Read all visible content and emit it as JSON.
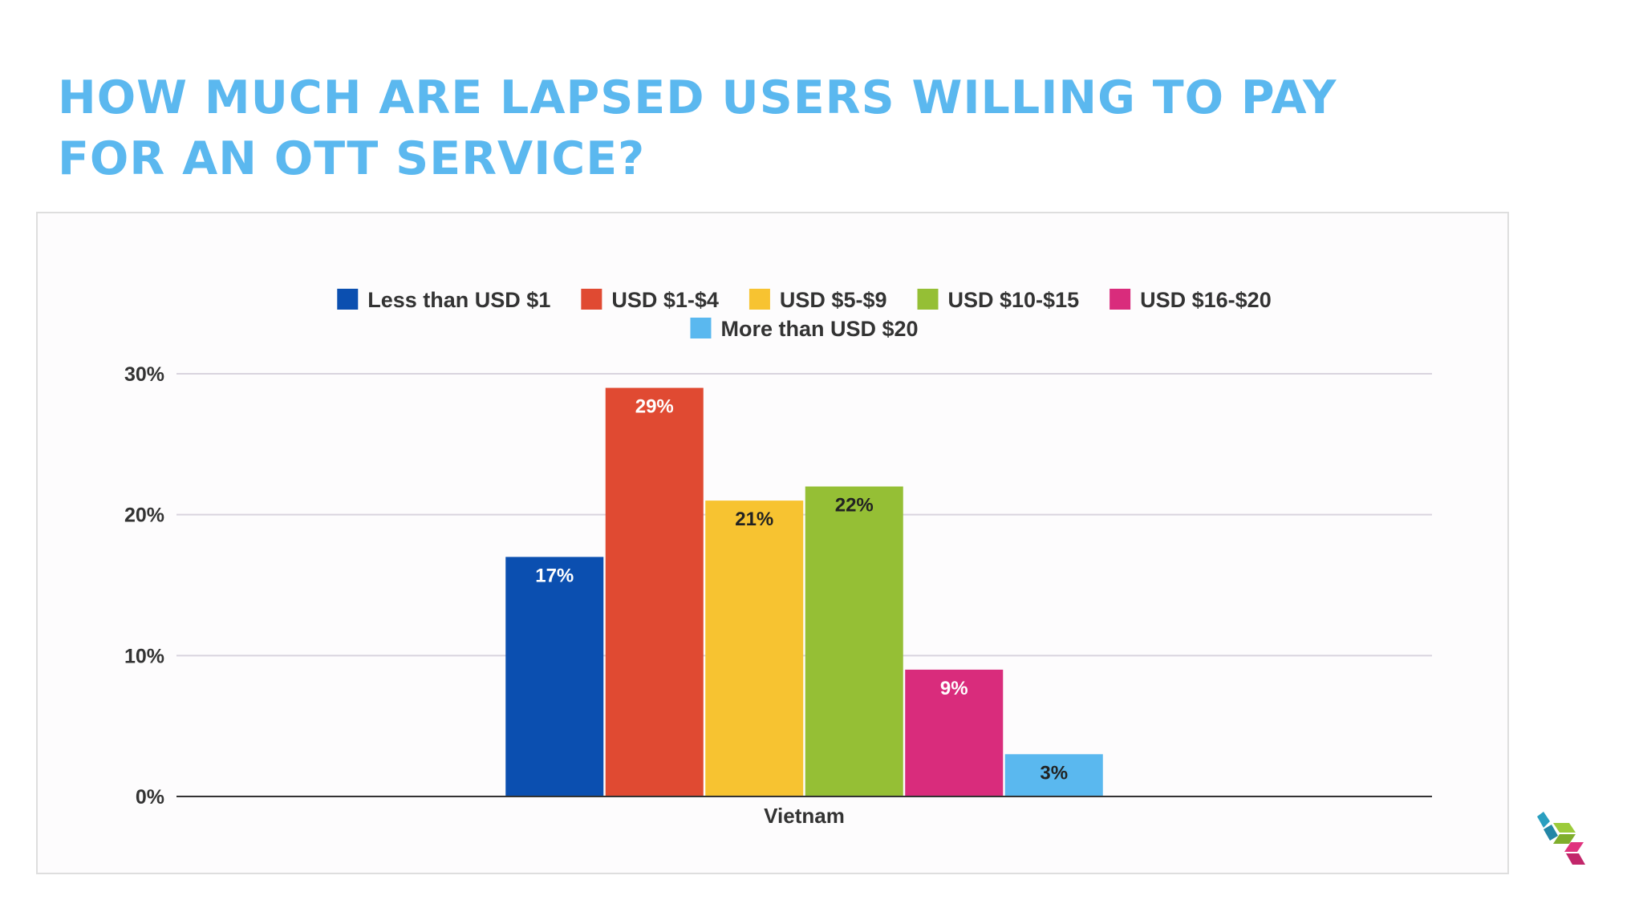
{
  "page": {
    "title_lines": [
      "HOW MUCH ARE LAPSED USERS WILLING TO PAY",
      "FOR AN OTT SERVICE?"
    ],
    "title_color": "#5bb8ef",
    "logo": {
      "icon": "brand-logo-icon",
      "colors": [
        "#2a9fc0",
        "#9ccb3b",
        "#e0337e"
      ]
    }
  },
  "chart_data": {
    "type": "bar",
    "categories": [
      "Vietnam"
    ],
    "series": [
      {
        "name": "Less than USD $1",
        "values": [
          17
        ],
        "color": "#0b4fb0",
        "label": "17%",
        "label_color": "#ffffff"
      },
      {
        "name": "USD $1-$4",
        "values": [
          29
        ],
        "color": "#e04a32",
        "label": "29%",
        "label_color": "#ffffff"
      },
      {
        "name": "USD $5-$9",
        "values": [
          21
        ],
        "color": "#f7c331",
        "label": "21%",
        "label_color": "#222222"
      },
      {
        "name": "USD $10-$15",
        "values": [
          22
        ],
        "color": "#95bf35",
        "label": "22%",
        "label_color": "#222222"
      },
      {
        "name": "USD $16-$20",
        "values": [
          9
        ],
        "color": "#d92c7c",
        "label": "9%",
        "label_color": "#ffffff"
      },
      {
        "name": "More than USD $20",
        "values": [
          3
        ],
        "color": "#5ab8ef",
        "label": "3%",
        "label_color": "#222222"
      }
    ],
    "yticks": [
      "0%",
      "10%",
      "20%",
      "30%"
    ],
    "ytick_values": [
      0,
      10,
      20,
      30
    ],
    "ylim": [
      0,
      30
    ],
    "xlabel": "",
    "ylabel": "",
    "grid": true,
    "legend_position": "top"
  }
}
